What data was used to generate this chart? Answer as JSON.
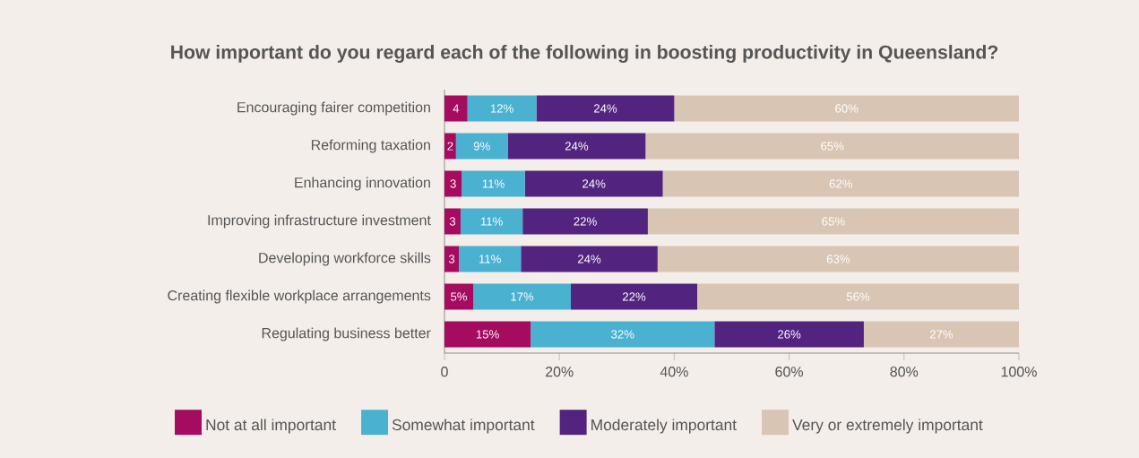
{
  "chart_data": {
    "type": "bar",
    "orientation": "horizontal",
    "stacked": true,
    "title": "How important do you regard each of the following in boosting productivity in Queensland?",
    "categories": [
      "Encouraging fairer competition",
      "Reforming taxation",
      "Enhancing innovation",
      "Improving infrastructure investment",
      "Developing workforce skills",
      "Creating flexible workplace arrangements",
      "Regulating business better"
    ],
    "series": [
      {
        "name": "Not at all important",
        "color": "#a50b5e",
        "values": [
          4,
          2,
          3,
          2.8,
          2.5,
          5,
          15
        ],
        "value_labels": [
          "4",
          "2",
          "3",
          "3",
          "3",
          "5%",
          "15%"
        ]
      },
      {
        "name": "Somewhat important",
        "color": "#4bb1d1",
        "values": [
          12,
          9,
          11,
          10.8,
          10.8,
          17,
          32
        ],
        "value_labels": [
          "12%",
          "9%",
          "11%",
          "11%",
          "11%",
          "17%",
          "32%"
        ]
      },
      {
        "name": "Moderately important",
        "color": "#53247f",
        "values": [
          24,
          24,
          24,
          21.8,
          23.8,
          22,
          26
        ],
        "value_labels": [
          "24%",
          "24%",
          "24%",
          "22%",
          "24%",
          "22%",
          "26%"
        ]
      },
      {
        "name": "Very or extremely important",
        "color": "#d9c5b3",
        "values": [
          60,
          65,
          62,
          64.6,
          62.9,
          56,
          27
        ],
        "value_labels": [
          "60%",
          "65%",
          "62%",
          "65%",
          "63%",
          "56%",
          "27%"
        ]
      }
    ],
    "xlim": [
      0,
      100
    ],
    "xticks": [
      0,
      {
        "value": 20,
        "label": "20%"
      },
      {
        "value": 40,
        "label": "40%"
      },
      {
        "value": 60,
        "label": "60%"
      },
      {
        "value": 80,
        "label": "80%"
      },
      {
        "value": 100,
        "label": "100%"
      }
    ],
    "legend": "bottom"
  }
}
